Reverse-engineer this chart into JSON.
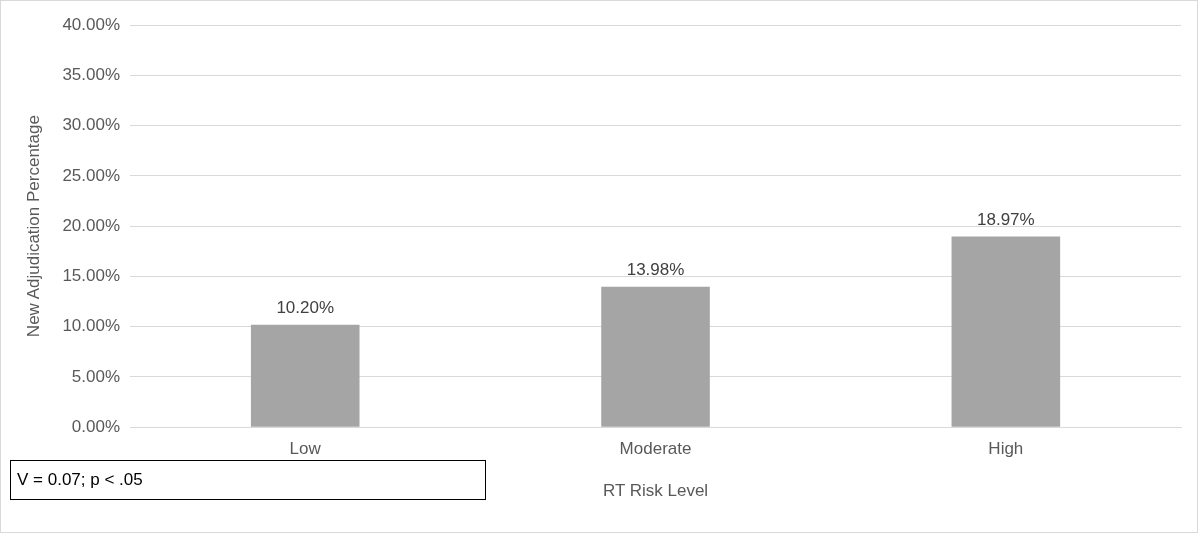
{
  "chart_data": {
    "type": "bar",
    "xlabel": "RT Risk Level",
    "ylabel": "New Adjudication Percentage",
    "categories": [
      "Low",
      "Moderate",
      "High"
    ],
    "values": [
      10.2,
      13.98,
      18.97
    ],
    "color": "#a5a5a5",
    "value_labels": [
      "10.20%",
      "13.98%",
      "18.97%"
    ],
    "ylim": [
      0,
      40
    ],
    "yticks": [
      {
        "value": 0,
        "label": "0.00%"
      },
      {
        "value": 5,
        "label": "5.00%"
      },
      {
        "value": 10,
        "label": "10.00%"
      },
      {
        "value": 15,
        "label": "15.00%"
      },
      {
        "value": 20,
        "label": "20.00%"
      },
      {
        "value": 25,
        "label": "25.00%"
      },
      {
        "value": 30,
        "label": "30.00%"
      },
      {
        "value": 35,
        "label": "35.00%"
      },
      {
        "value": 40,
        "label": "40.00%"
      }
    ],
    "grid": "y",
    "legend": false,
    "annotations": [
      "V = 0.07; p < .05"
    ]
  }
}
